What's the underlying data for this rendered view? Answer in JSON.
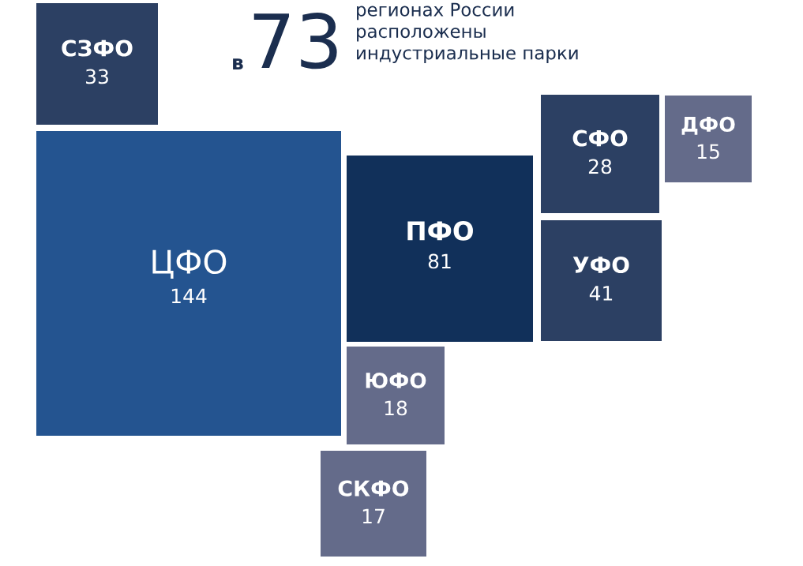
{
  "chart_data": {
    "type": "other",
    "annotations": [
      "в",
      "73",
      "регионах России\nрасположены\nиндустриальные парки"
    ],
    "categories": [
      "СЗФО",
      "ЦФО",
      "ПФО",
      "ЮФО",
      "СКФО",
      "СФО",
      "УФО",
      "ДФО"
    ],
    "values": [
      33,
      144,
      81,
      18,
      17,
      28,
      41,
      15
    ],
    "colors": [
      "#2c4063",
      "#245490",
      "#11305a",
      "#646b8a",
      "#646b8a",
      "#2c4063",
      "#2c4063",
      "#646b8a"
    ],
    "data_labels": true
  }
}
